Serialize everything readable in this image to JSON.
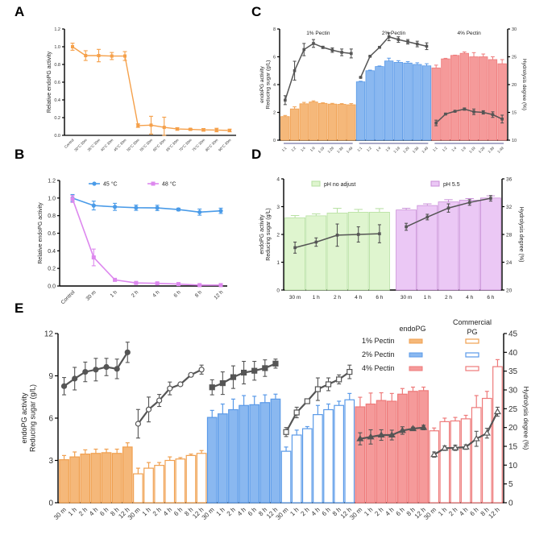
{
  "colors": {
    "orange": "#f5b87a",
    "orange_edge": "#f0a050",
    "blue": "#8ab8f0",
    "blue_edge": "#5a9ae8",
    "red": "#f59a9a",
    "red_edge": "#ee7a7a",
    "green": "#dff5cf",
    "green_edge": "#b6e0a0",
    "purple": "#ebc8f5",
    "purple_edge": "#c98ed8",
    "line_gray": "#555555",
    "line_45": "#4a9be8",
    "line_48": "#dd88ee",
    "line_A": "#f5a04a"
  },
  "chart_data": [
    {
      "id": "A",
      "panel_letter": "A",
      "type": "line",
      "title": "",
      "xlabel": "",
      "ylabel": "Relative endoPG activity",
      "ylim": [
        0,
        1.2
      ],
      "yticks": [
        "0.0",
        "0.2",
        "0.4",
        "0.6",
        "0.8",
        "1.0",
        "1.2"
      ],
      "categories": [
        "Control",
        "30°C 30m",
        "35°C 30m",
        "40°C 30m",
        "45°C 30m",
        "50°C 30m",
        "55°C 30m",
        "60°C 30m",
        "65°C 30m",
        "70°C 30m",
        "75°C 30m",
        "80°C 30m",
        "90°C 30m"
      ],
      "series": [
        {
          "name": "activity",
          "values": [
            1.0,
            0.9,
            0.9,
            0.895,
            0.895,
            0.11,
            0.115,
            0.09,
            0.072,
            0.068,
            0.062,
            0.06,
            0.055
          ],
          "errors": [
            0.04,
            0.055,
            0.07,
            0.04,
            0.05,
            0.02,
            0.1,
            0.115,
            0.015,
            0.01,
            0.015,
            0.02,
            0.015
          ]
        }
      ]
    },
    {
      "id": "B",
      "panel_letter": "B",
      "type": "line",
      "ylabel": "Relative endoPG activity",
      "ylim": [
        0,
        1.2
      ],
      "yticks": [
        "0.0",
        "0.2",
        "0.4",
        "0.6",
        "0.8",
        "1.0",
        "1.2"
      ],
      "categories": [
        "Control",
        "30 m",
        "1 h",
        "2 h",
        "4 h",
        "6 h",
        "8 h",
        "12 h"
      ],
      "legend_position": "top",
      "series": [
        {
          "name": "45 °C",
          "marker": "circle",
          "values": [
            1.0,
            0.915,
            0.9,
            0.89,
            0.888,
            0.87,
            0.84,
            0.855
          ],
          "errors": [
            0.04,
            0.05,
            0.04,
            0.03,
            0.03,
            0.015,
            0.035,
            0.03
          ]
        },
        {
          "name": "48 °C",
          "marker": "square",
          "values": [
            0.99,
            0.325,
            0.07,
            0.035,
            0.03,
            0.022,
            0.01,
            0.01
          ],
          "errors": [
            0.04,
            0.095,
            0.015,
            0.01,
            0.01,
            0.008,
            0.005,
            0.005
          ]
        }
      ]
    },
    {
      "id": "C",
      "panel_letter": "C",
      "type": "bar",
      "ylabel": "endoPG activity\nReducing sugar (g/L)",
      "ylabel_lines": [
        "endoPG activity",
        "Reducing sugar (g/L)"
      ],
      "y2label": "Hydrolysis degree (%)",
      "ylim": [
        0,
        8
      ],
      "yticks": [
        "0",
        "2",
        "4",
        "6",
        "8"
      ],
      "y2lim": [
        10,
        30
      ],
      "y2ticks": [
        "10",
        "15",
        "20",
        "25",
        "30"
      ],
      "categories": [
        "1:1",
        "1:2",
        "1:4",
        "1:9",
        "1:19",
        "1:29",
        "1:39",
        "1:49"
      ],
      "groups": [
        {
          "name": "1% Pectin",
          "color": "orange",
          "bars": [
            1.7,
            2.25,
            2.62,
            2.75,
            2.65,
            2.6,
            2.58,
            2.55
          ],
          "bar_err": [
            0.08,
            0.15,
            0.1,
            0.08,
            0.04,
            0.05,
            0.05,
            0.08
          ],
          "line": [
            17.2,
            22.5,
            26.3,
            27.4,
            26.7,
            26.2,
            25.8,
            25.6
          ],
          "line_err": [
            0.8,
            1.7,
            1.1,
            0.7,
            0.2,
            0.4,
            0.6,
            0.8
          ]
        },
        {
          "name": "2% Pectin",
          "color": "blue",
          "bars": [
            4.2,
            5.0,
            5.3,
            5.7,
            5.6,
            5.55,
            5.45,
            5.35
          ],
          "bar_err": [
            0.04,
            0.04,
            0.04,
            0.2,
            0.12,
            0.1,
            0.12,
            0.15
          ],
          "line": [
            21.3,
            25.1,
            26.7,
            28.6,
            28.1,
            27.7,
            27.3,
            26.9
          ],
          "line_err": [
            0.1,
            0.1,
            0.1,
            0.7,
            0.5,
            0.4,
            0.5,
            0.6
          ]
        },
        {
          "name": "4% Pectin",
          "color": "red",
          "bars": [
            5.2,
            5.85,
            6.1,
            6.25,
            6.0,
            6.0,
            5.8,
            5.5
          ],
          "bar_err": [
            0.2,
            0.04,
            0.02,
            0.1,
            0.3,
            0.2,
            0.2,
            0.3
          ],
          "line": [
            13.1,
            14.7,
            15.2,
            15.6,
            15.1,
            15.0,
            14.6,
            13.8
          ],
          "line_err": [
            0.5,
            0.1,
            0.1,
            0.2,
            0.5,
            0.3,
            0.5,
            0.7
          ]
        }
      ]
    },
    {
      "id": "D",
      "panel_letter": "D",
      "type": "bar",
      "ylabel_lines": [
        "endoPG activity",
        "Reducing sugar (g/L)"
      ],
      "y2label": "Hydrolysis degree (%)",
      "ylim": [
        0,
        4
      ],
      "yticks": [
        "0",
        "1",
        "2",
        "3",
        "4"
      ],
      "y2lim": [
        20,
        36
      ],
      "y2ticks": [
        "20",
        "24",
        "28",
        "32",
        "36"
      ],
      "categories": [
        "30 m",
        "1 h",
        "2 h",
        "4 h",
        "6 h"
      ],
      "legend_position": "top",
      "groups": [
        {
          "name": "pH no adjust",
          "color": "green",
          "bars": [
            2.6,
            2.67,
            2.77,
            2.8,
            2.8
          ],
          "bar_err": [
            0.08,
            0.07,
            0.17,
            0.1,
            0.13
          ],
          "line": [
            26.1,
            26.9,
            27.9,
            28.0,
            28.1
          ],
          "line_err": [
            0.8,
            0.6,
            1.6,
            1.1,
            1.3
          ]
        },
        {
          "name": "pH 5.5",
          "color": "purple",
          "bars": [
            2.88,
            3.04,
            3.17,
            3.23,
            3.31
          ],
          "bar_err": [
            0.06,
            0.06,
            0.08,
            0.06,
            0.08
          ],
          "line": [
            29.1,
            30.5,
            31.8,
            32.6,
            33.2
          ],
          "line_err": [
            0.5,
            0.4,
            0.6,
            0.4,
            0.4
          ]
        }
      ]
    },
    {
      "id": "E",
      "panel_letter": "E",
      "type": "bar",
      "ylabel_lines": [
        "endoPG activity",
        "Reducing sugar (g/L)"
      ],
      "y2label": "Hydrolysis degree (%)",
      "ylim": [
        0,
        12
      ],
      "yticks": [
        "0",
        "3",
        "6",
        "9",
        "12"
      ],
      "y2lim": [
        0,
        45
      ],
      "y2ticks": [
        "0",
        "5",
        "10",
        "15",
        "20",
        "25",
        "30",
        "35",
        "40",
        "45"
      ],
      "categories": [
        "30 m",
        "1 h",
        "2 h",
        "4 h",
        "6 h",
        "8 h",
        "12 h"
      ],
      "legend": {
        "col_headers": [
          "endoPG",
          "Commercial\nPG"
        ],
        "col_header_lines": [
          [
            "endoPG"
          ],
          [
            "Commercial",
            "PG"
          ]
        ],
        "rows": [
          "1% Pectin",
          "2% Pectin",
          "4% Pectin"
        ]
      },
      "groups": [
        {
          "name": "1% Pectin endoPG",
          "color": "orange",
          "filled": true,
          "marker": "filled-circle",
          "bars": [
            3.05,
            3.25,
            3.45,
            3.5,
            3.55,
            3.5,
            3.95
          ],
          "bar_err": [
            0.3,
            0.35,
            0.3,
            0.3,
            0.25,
            0.3,
            0.3
          ],
          "line": [
            31.0,
            33.0,
            34.8,
            35.4,
            36.1,
            35.6,
            40.0
          ],
          "line_err": [
            2.3,
            3.0,
            2.6,
            3.0,
            2.3,
            2.6,
            2.7
          ]
        },
        {
          "name": "1% Pectin Commercial PG",
          "color": "orange",
          "filled": false,
          "marker": "open-circle",
          "bars": [
            2.05,
            2.45,
            2.65,
            3.0,
            3.1,
            3.35,
            3.5
          ],
          "bar_err": [
            0.4,
            0.4,
            0.2,
            0.25,
            0.1,
            0.1,
            0.2
          ],
          "line": [
            21.0,
            24.8,
            27.2,
            30.4,
            31.5,
            34.0,
            35.4
          ],
          "line_err": [
            3.8,
            3.3,
            1.6,
            1.7,
            0.3,
            0.3,
            1.2
          ]
        },
        {
          "name": "2% Pectin endoPG",
          "color": "blue",
          "filled": true,
          "marker": "filled-square",
          "bars": [
            6.05,
            6.3,
            6.6,
            6.9,
            6.95,
            7.1,
            7.35
          ],
          "bar_err": [
            0.5,
            0.7,
            0.75,
            0.7,
            0.6,
            0.55,
            0.35
          ],
          "line": [
            30.7,
            31.8,
            33.4,
            34.6,
            35.1,
            35.8,
            37.0
          ],
          "line_err": [
            2.0,
            3.0,
            3.0,
            3.0,
            2.5,
            2.2,
            1.2
          ]
        },
        {
          "name": "2% Pectin Commercial PG",
          "color": "blue",
          "filled": false,
          "marker": "open-square",
          "bars": [
            3.65,
            4.8,
            5.25,
            6.25,
            6.6,
            6.9,
            7.3
          ],
          "bar_err": [
            0.3,
            0.35,
            0.15,
            0.65,
            0.4,
            0.3,
            0.45
          ],
          "line": [
            18.8,
            24.0,
            27.0,
            30.2,
            31.5,
            32.8,
            34.8
          ],
          "line_err": [
            1.2,
            1.4,
            0.5,
            3.0,
            1.7,
            1.2,
            1.8
          ]
        },
        {
          "name": "4% Pectin endoPG",
          "color": "red",
          "filled": true,
          "marker": "filled-triangle",
          "bars": [
            6.8,
            7.0,
            7.25,
            7.2,
            7.7,
            7.9,
            7.95
          ],
          "bar_err": [
            0.68,
            0.78,
            0.55,
            0.55,
            0.4,
            0.3,
            0.25
          ],
          "line": [
            17.0,
            17.5,
            18.0,
            18.0,
            19.2,
            19.7,
            20.0
          ],
          "line_err": [
            1.6,
            1.9,
            1.4,
            1.3,
            1.0,
            0.4,
            0.6
          ]
        },
        {
          "name": "4% Pectin Commercial PG",
          "color": "red",
          "filled": false,
          "marker": "open-triangle",
          "bars": [
            5.1,
            5.75,
            5.8,
            5.95,
            6.75,
            7.4,
            9.65
          ],
          "bar_err": [
            0.2,
            0.25,
            0.25,
            0.25,
            0.85,
            0.5,
            0.5
          ],
          "line": [
            12.8,
            14.5,
            14.6,
            14.8,
            17.0,
            18.5,
            24.2
          ],
          "line_err": [
            0.7,
            0.6,
            0.7,
            0.6,
            2.0,
            1.3,
            1.2
          ]
        }
      ]
    }
  ]
}
